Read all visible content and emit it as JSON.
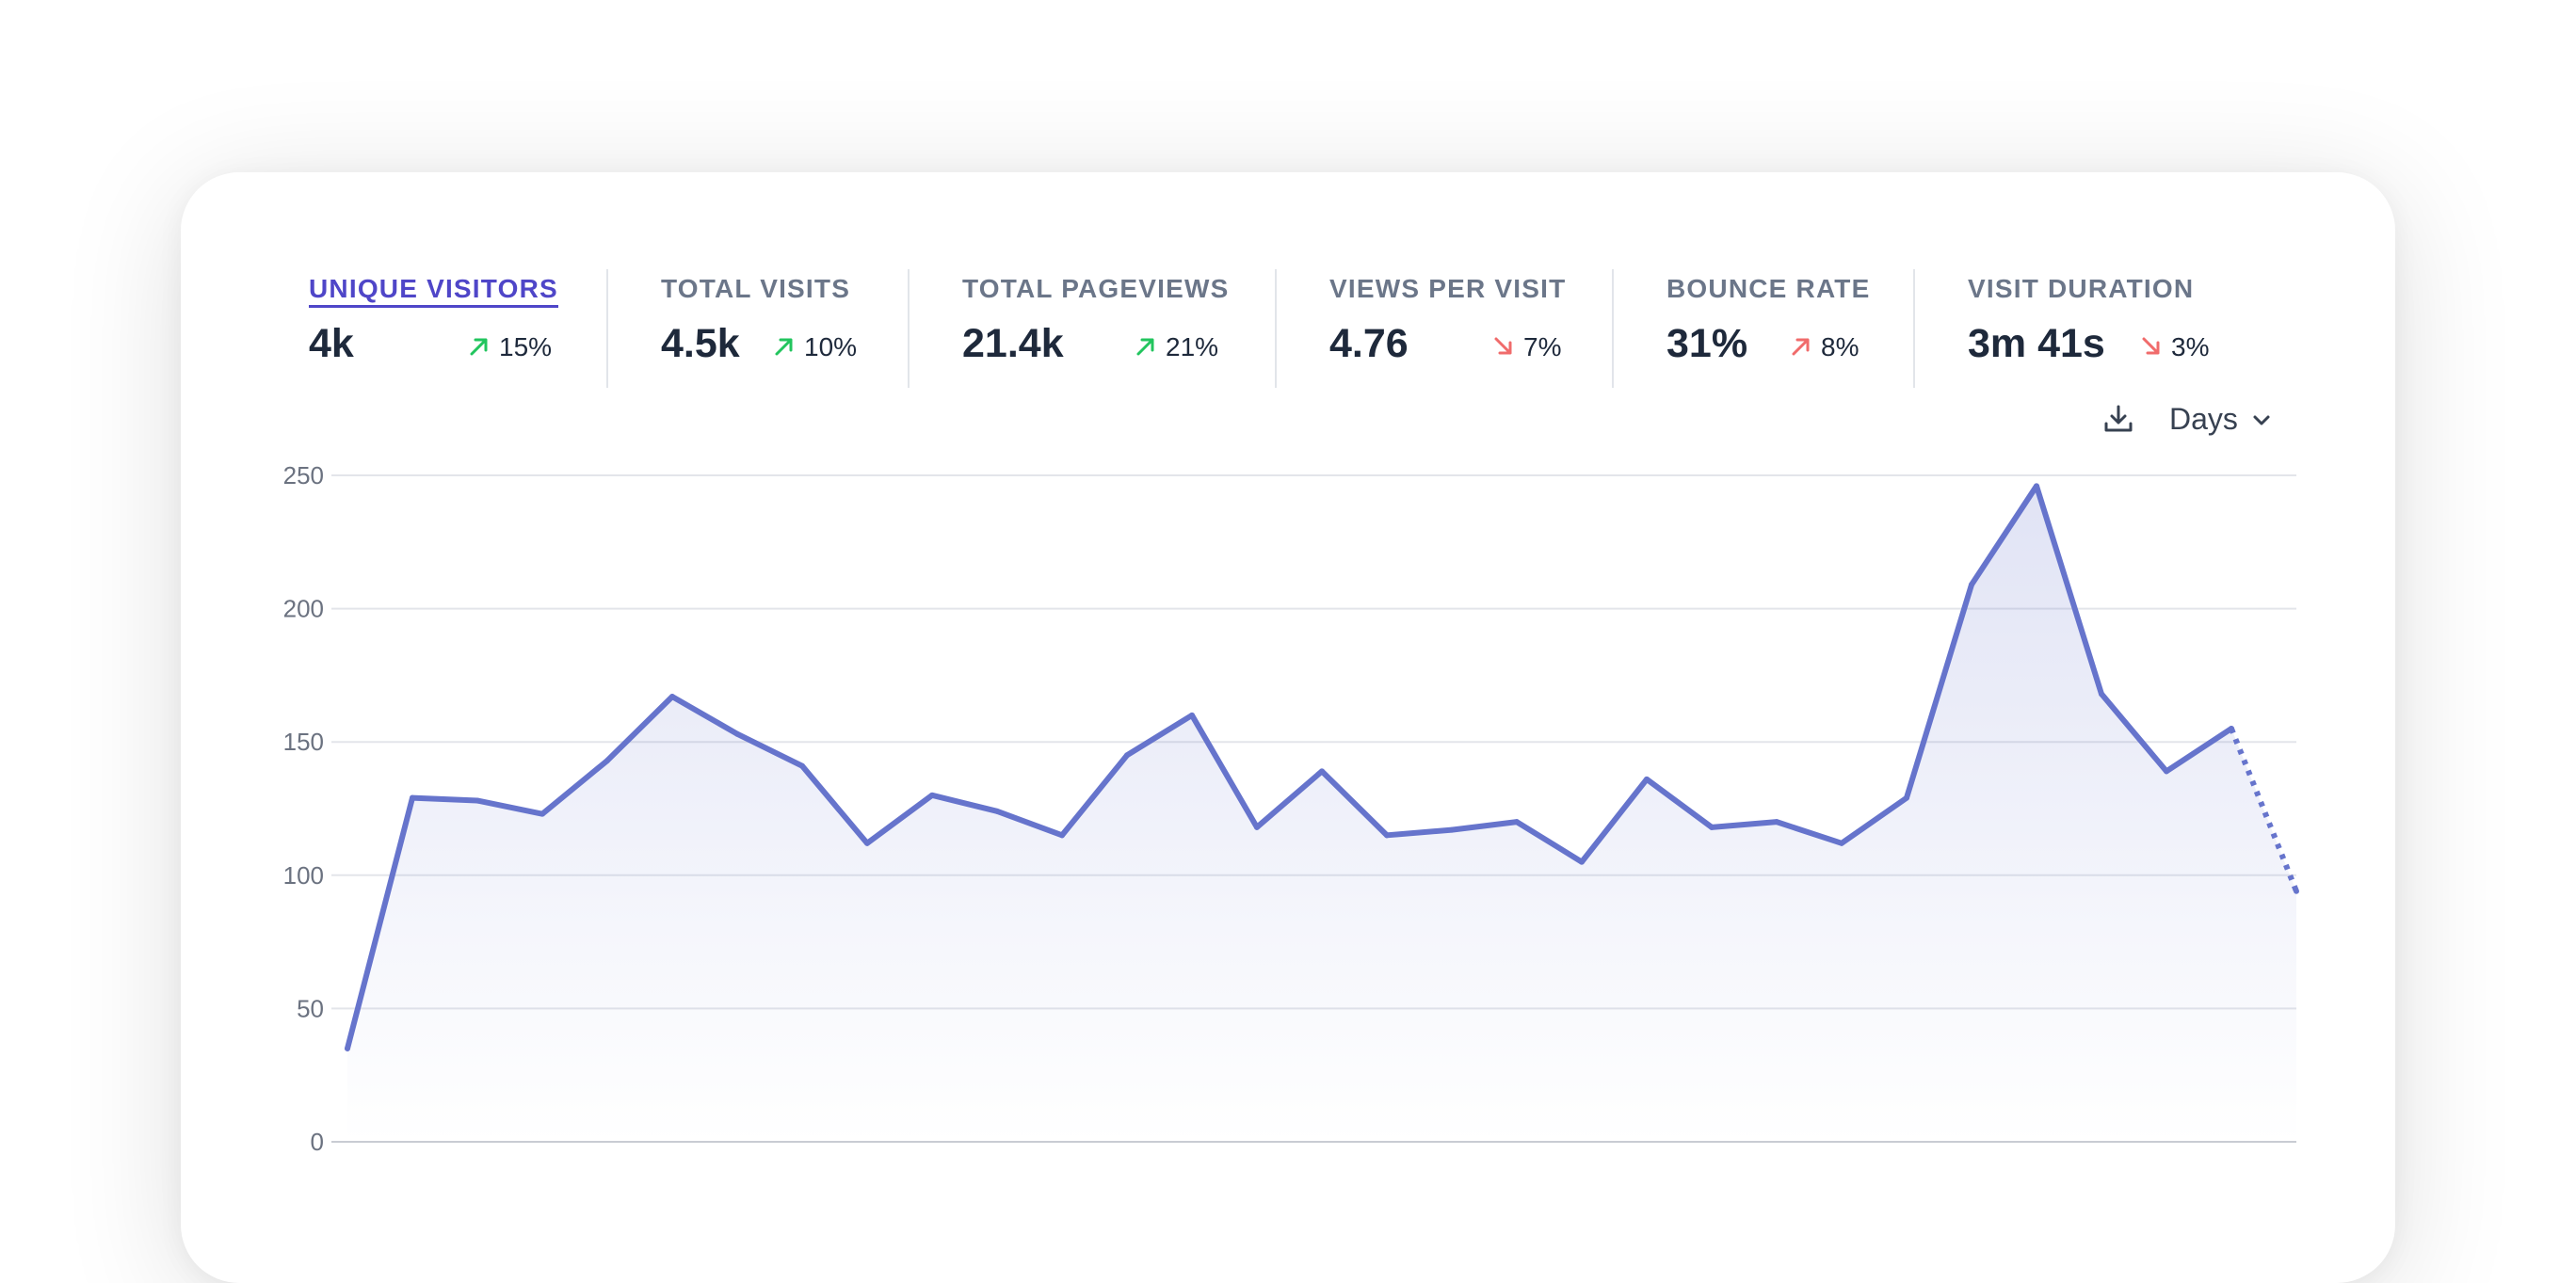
{
  "stats": [
    {
      "label": "UNIQUE VISITORS",
      "value": "4k",
      "change": "15%",
      "trend": "up",
      "active": true
    },
    {
      "label": "TOTAL VISITS",
      "value": "4.5k",
      "change": "10%",
      "trend": "up",
      "active": false
    },
    {
      "label": "TOTAL PAGEVIEWS",
      "value": "21.4k",
      "change": "21%",
      "trend": "up",
      "active": false
    },
    {
      "label": "VIEWS PER VISIT",
      "value": "4.76",
      "change": "7%",
      "trend": "down",
      "active": false
    },
    {
      "label": "BOUNCE RATE",
      "value": "31%",
      "change": "8%",
      "trend": "up-bad",
      "active": false
    },
    {
      "label": "VISIT DURATION",
      "value": "3m 41s",
      "change": "3%",
      "trend": "down",
      "active": false
    }
  ],
  "toolbar": {
    "download_icon": "download-icon",
    "interval_label": "Days",
    "interval_icon": "chevron-down-icon"
  },
  "colors": {
    "accent": "#4f46c8",
    "line": "#6674cc",
    "positive": "#22c55e",
    "negative": "#f06b6b"
  },
  "chart_data": {
    "type": "area",
    "title": "",
    "xlabel": "",
    "ylabel": "",
    "ylim": [
      0,
      250
    ],
    "yticks": [
      0,
      50,
      100,
      150,
      200,
      250
    ],
    "grid": true,
    "series": [
      {
        "values": [
          35,
          129,
          128,
          123,
          143,
          167,
          153,
          141,
          112,
          130,
          124,
          115,
          145,
          160,
          118,
          139,
          115,
          117,
          120,
          105,
          136,
          118,
          120,
          112,
          129,
          209,
          246,
          168,
          139,
          155,
          94
        ],
        "incomplete_last_point": true
      }
    ]
  }
}
